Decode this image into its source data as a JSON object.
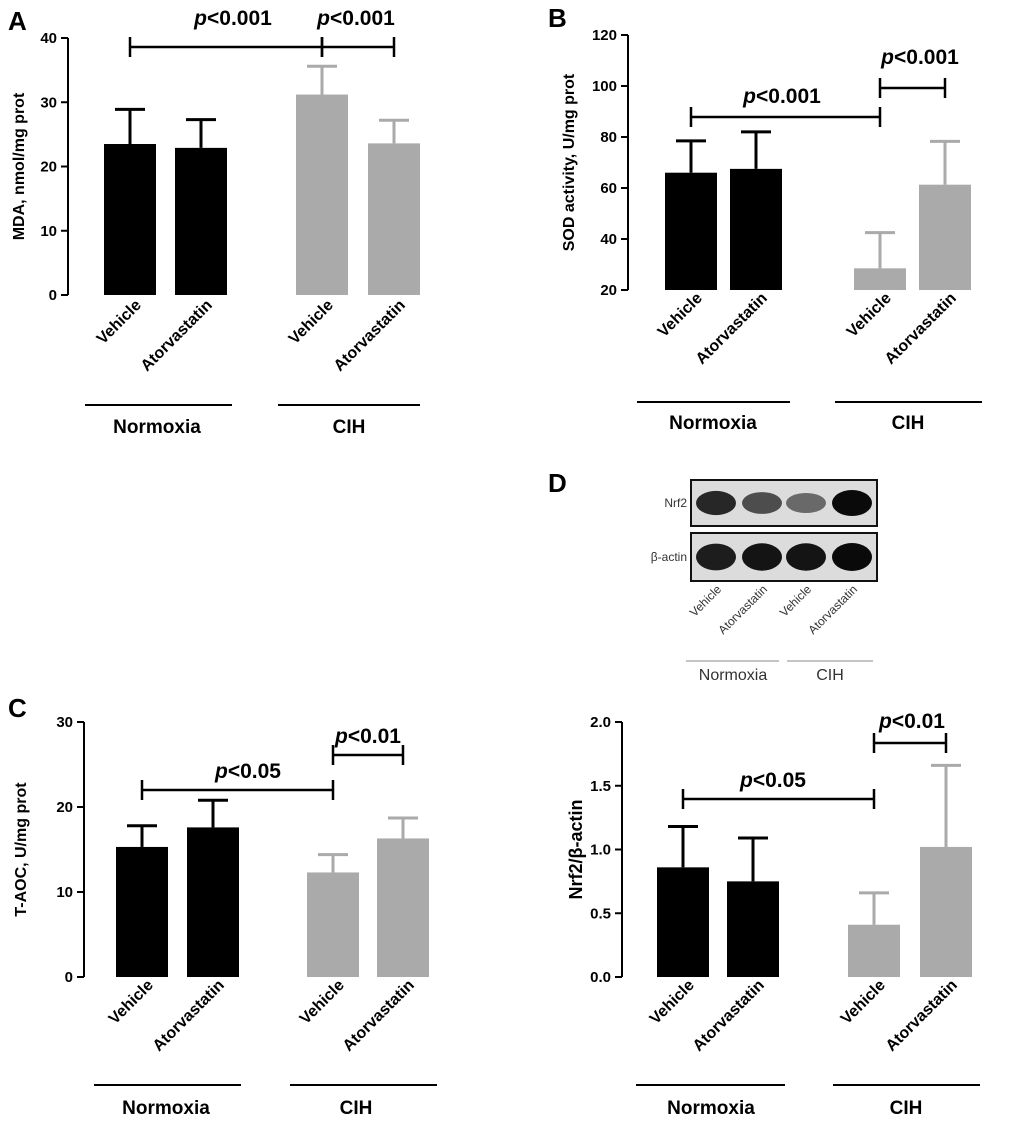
{
  "chart_data": [
    {
      "panel": "A",
      "type": "bar",
      "ylabel": "MDA, nmol/mg prot",
      "ylim": [
        0,
        40
      ],
      "yticks": [
        "0",
        "10",
        "20",
        "30",
        "40"
      ],
      "categories": [
        "Vehicle",
        "Atorvastatin",
        "Vehicle",
        "Atorvastatin"
      ],
      "groups": [
        "Normoxia",
        "CIH"
      ],
      "values": [
        23.5,
        22.9,
        31.2,
        23.6
      ],
      "errors": [
        5.4,
        4.4,
        4.4,
        3.6
      ],
      "colors": [
        "#000000",
        "#000000",
        "#aaaaaa",
        "#aaaaaa"
      ],
      "comparisons": [
        {
          "from": 0,
          "to": 2,
          "label_p": "p",
          "label_rest": "<0.001"
        },
        {
          "from": 2,
          "to": 3,
          "label_p": "p",
          "label_rest": "<0.001"
        }
      ]
    },
    {
      "panel": "B",
      "type": "bar",
      "ylabel": "SOD activity, U/mg prot",
      "ylim": [
        20,
        120
      ],
      "yticks": [
        "20",
        "40",
        "60",
        "80",
        "100",
        "120"
      ],
      "categories": [
        "Vehicle",
        "Atorvastatin",
        "Vehicle",
        "Atorvastatin"
      ],
      "groups": [
        "Normoxia",
        "CIH"
      ],
      "values": [
        66,
        67.5,
        28.5,
        61.3
      ],
      "errors": [
        12.5,
        14.5,
        14,
        17
      ],
      "colors": [
        "#000000",
        "#000000",
        "#aaaaaa",
        "#aaaaaa"
      ],
      "comparisons": [
        {
          "from": 0,
          "to": 2,
          "label_p": "p",
          "label_rest": "<0.001"
        },
        {
          "from": 2,
          "to": 3,
          "label_p": "p",
          "label_rest": "<0.001"
        }
      ]
    },
    {
      "panel": "C",
      "type": "bar",
      "ylabel": "T-AOC, U/mg prot",
      "ylim": [
        0,
        30
      ],
      "yticks": [
        "0",
        "10",
        "20",
        "30"
      ],
      "categories": [
        "Vehicle",
        "Atorvastatin",
        "Vehicle",
        "Atorvastatin"
      ],
      "groups": [
        "Normoxia",
        "CIH"
      ],
      "values": [
        15.3,
        17.6,
        12.3,
        16.3
      ],
      "errors": [
        2.5,
        3.2,
        2.1,
        2.4
      ],
      "colors": [
        "#000000",
        "#000000",
        "#aaaaaa",
        "#aaaaaa"
      ],
      "comparisons": [
        {
          "from": 0,
          "to": 2,
          "label_p": "p",
          "label_rest": "<0.05"
        },
        {
          "from": 2,
          "to": 3,
          "label_p": "p",
          "label_rest": "<0.01"
        }
      ]
    },
    {
      "panel": "D",
      "type": "bar",
      "ylabel": "Nrf2/β-actin",
      "ylim": [
        0,
        2.0
      ],
      "yticks": [
        "0.0",
        "0.5",
        "1.0",
        "1.5",
        "2.0"
      ],
      "categories": [
        "Vehicle",
        "Atorvastatin",
        "Vehicle",
        "Atorvastatin"
      ],
      "groups": [
        "Normoxia",
        "CIH"
      ],
      "values": [
        0.86,
        0.75,
        0.41,
        1.02
      ],
      "errors": [
        0.32,
        0.34,
        0.25,
        0.64
      ],
      "colors": [
        "#000000",
        "#000000",
        "#aaaaaa",
        "#aaaaaa"
      ],
      "comparisons": [
        {
          "from": 0,
          "to": 2,
          "label_p": "p",
          "label_rest": "<0.05"
        },
        {
          "from": 2,
          "to": 3,
          "label_p": "p",
          "label_rest": "<0.01"
        }
      ]
    }
  ],
  "blot": {
    "panel": "D",
    "rows": [
      "Nrf2",
      "β-actin"
    ],
    "categories": [
      "Vehicle",
      "Atorvastatin",
      "Vehicle",
      "Atorvastatin"
    ],
    "groups": [
      "Normoxia",
      "CIH"
    ],
    "band_intensity": {
      "Nrf2": [
        0.85,
        0.65,
        0.5,
        1.0
      ],
      "β-actin": [
        0.9,
        0.95,
        0.95,
        1.0
      ]
    }
  }
}
